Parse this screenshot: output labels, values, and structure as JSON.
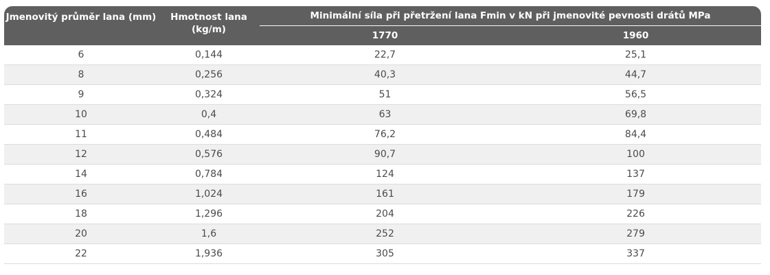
{
  "table": {
    "headers": {
      "diameter": "Jmenovitý průměr lana (mm)",
      "weight": "Hmotnost lana (kg/m)",
      "force_group": "Minimální síla při přetržení lana Fmin v kN při jmenovité pevnosti drátů MPa",
      "strength_1": "1770",
      "strength_2": "1960"
    },
    "rows": [
      [
        "6",
        "0,144",
        "22,7",
        "25,1"
      ],
      [
        "8",
        "0,256",
        "40,3",
        "44,7"
      ],
      [
        "9",
        "0,324",
        "51",
        "56,5"
      ],
      [
        "10",
        "0,4",
        "63",
        "69,8"
      ],
      [
        "11",
        "0,484",
        "76,2",
        "84,4"
      ],
      [
        "12",
        "0,576",
        "90,7",
        "100"
      ],
      [
        "14",
        "0,784",
        "124",
        "137"
      ],
      [
        "16",
        "1,024",
        "161",
        "179"
      ],
      [
        "18",
        "1,296",
        "204",
        "226"
      ],
      [
        "20",
        "1,6",
        "252",
        "279"
      ],
      [
        "22",
        "1,936",
        "305",
        "337"
      ]
    ]
  }
}
